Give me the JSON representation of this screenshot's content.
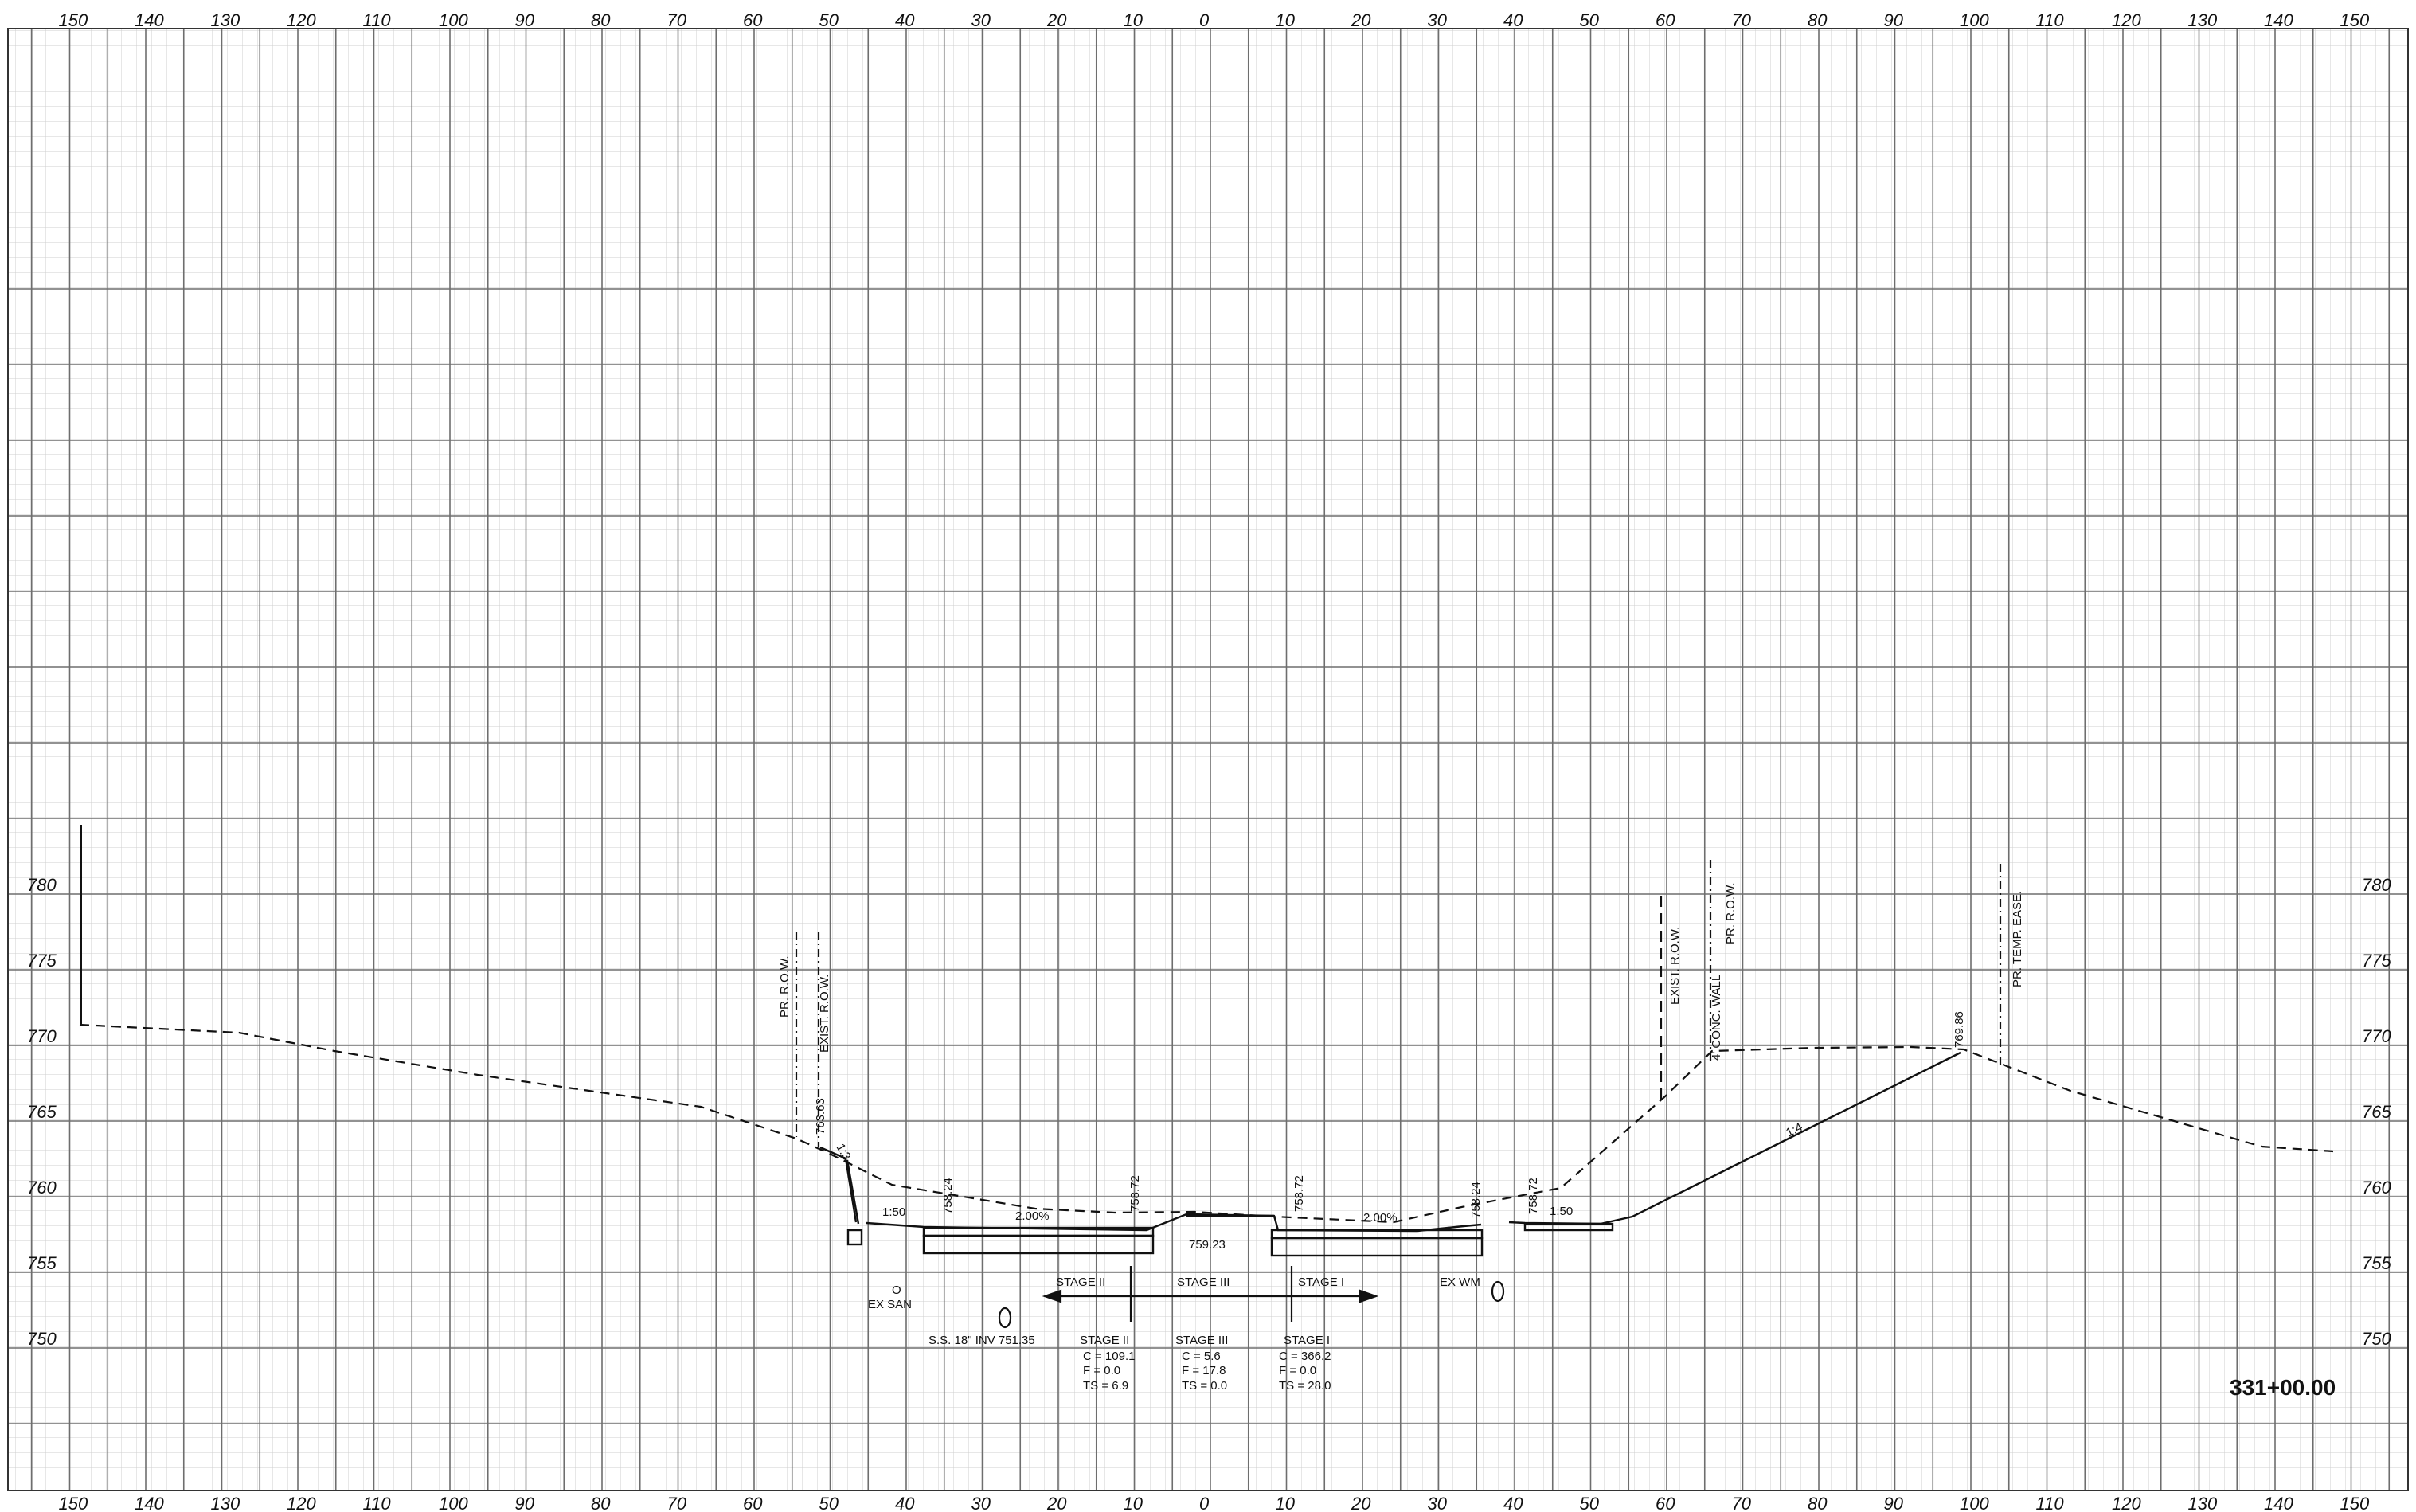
{
  "sheet": {
    "station": "331+00.00"
  },
  "axes": {
    "offsets": [
      "150",
      "140",
      "130",
      "120",
      "110",
      "100",
      "90",
      "80",
      "70",
      "60",
      "50",
      "40",
      "30",
      "20",
      "10",
      "0",
      "10",
      "20",
      "30",
      "40",
      "50",
      "60",
      "70",
      "80",
      "90",
      "100",
      "110",
      "120",
      "130",
      "140",
      "150"
    ],
    "offset_values": [
      -150,
      -140,
      -130,
      -120,
      -110,
      -100,
      -90,
      -80,
      -70,
      -60,
      -50,
      -40,
      -30,
      -20,
      -10,
      0,
      10,
      20,
      30,
      40,
      50,
      60,
      70,
      80,
      90,
      100,
      110,
      120,
      130,
      140,
      150
    ],
    "elevations": [
      "780",
      "775",
      "770",
      "765",
      "760",
      "755",
      "750"
    ],
    "elevation_values": [
      780,
      775,
      770,
      765,
      760,
      755,
      750
    ]
  },
  "row_labels": {
    "pr_row_left": "PR. R.O.W.",
    "exist_row_left": "EXIST. R.O.W.",
    "exist_row_right": "EXIST. R.O.W.",
    "conc_wall": "4' CONC. WALL",
    "pr_row_right": "PR. R.O.W.",
    "pr_temp_ease": "PR. TEMP. EASE."
  },
  "elev_labels": {
    "e1": "763.63",
    "e2": "758.24",
    "e3": "758.72",
    "e4": "758.72",
    "e5": "758.24",
    "e6": "758.72",
    "e7": "769.86",
    "e8": "759.23"
  },
  "slopes": {
    "s1": "1:3",
    "s2": "1:50",
    "s3": "2.00%",
    "s4": "2.00%",
    "s5": "1:50",
    "s6": "1:4"
  },
  "stages": {
    "top_ii": "STAGE II",
    "top_iii": "STAGE III",
    "top_i": "STAGE I",
    "ex_san_o": "O",
    "ex_san": "EX SAN",
    "ex_wm": "EX WM",
    "ss_note": "S.S. 18\" INV 751.35"
  },
  "quantities": {
    "stage_ii": {
      "head": "STAGE II",
      "c": "C = 109.1",
      "f": "F = 0.0",
      "ts": "TS = 6.9"
    },
    "stage_iii": {
      "head": "STAGE III",
      "c": "C = 5.6",
      "f": "F = 17.8",
      "ts": "TS = 0.0"
    },
    "stage_i": {
      "head": "STAGE I",
      "c": "C = 366.2",
      "f": "F = 0.0",
      "ts": "TS = 28.0"
    }
  },
  "colors": {
    "paper": "#ffffff",
    "grid_fine": "#c9c9c9",
    "grid_major": "#6e6e6e",
    "ink": "#111111"
  }
}
